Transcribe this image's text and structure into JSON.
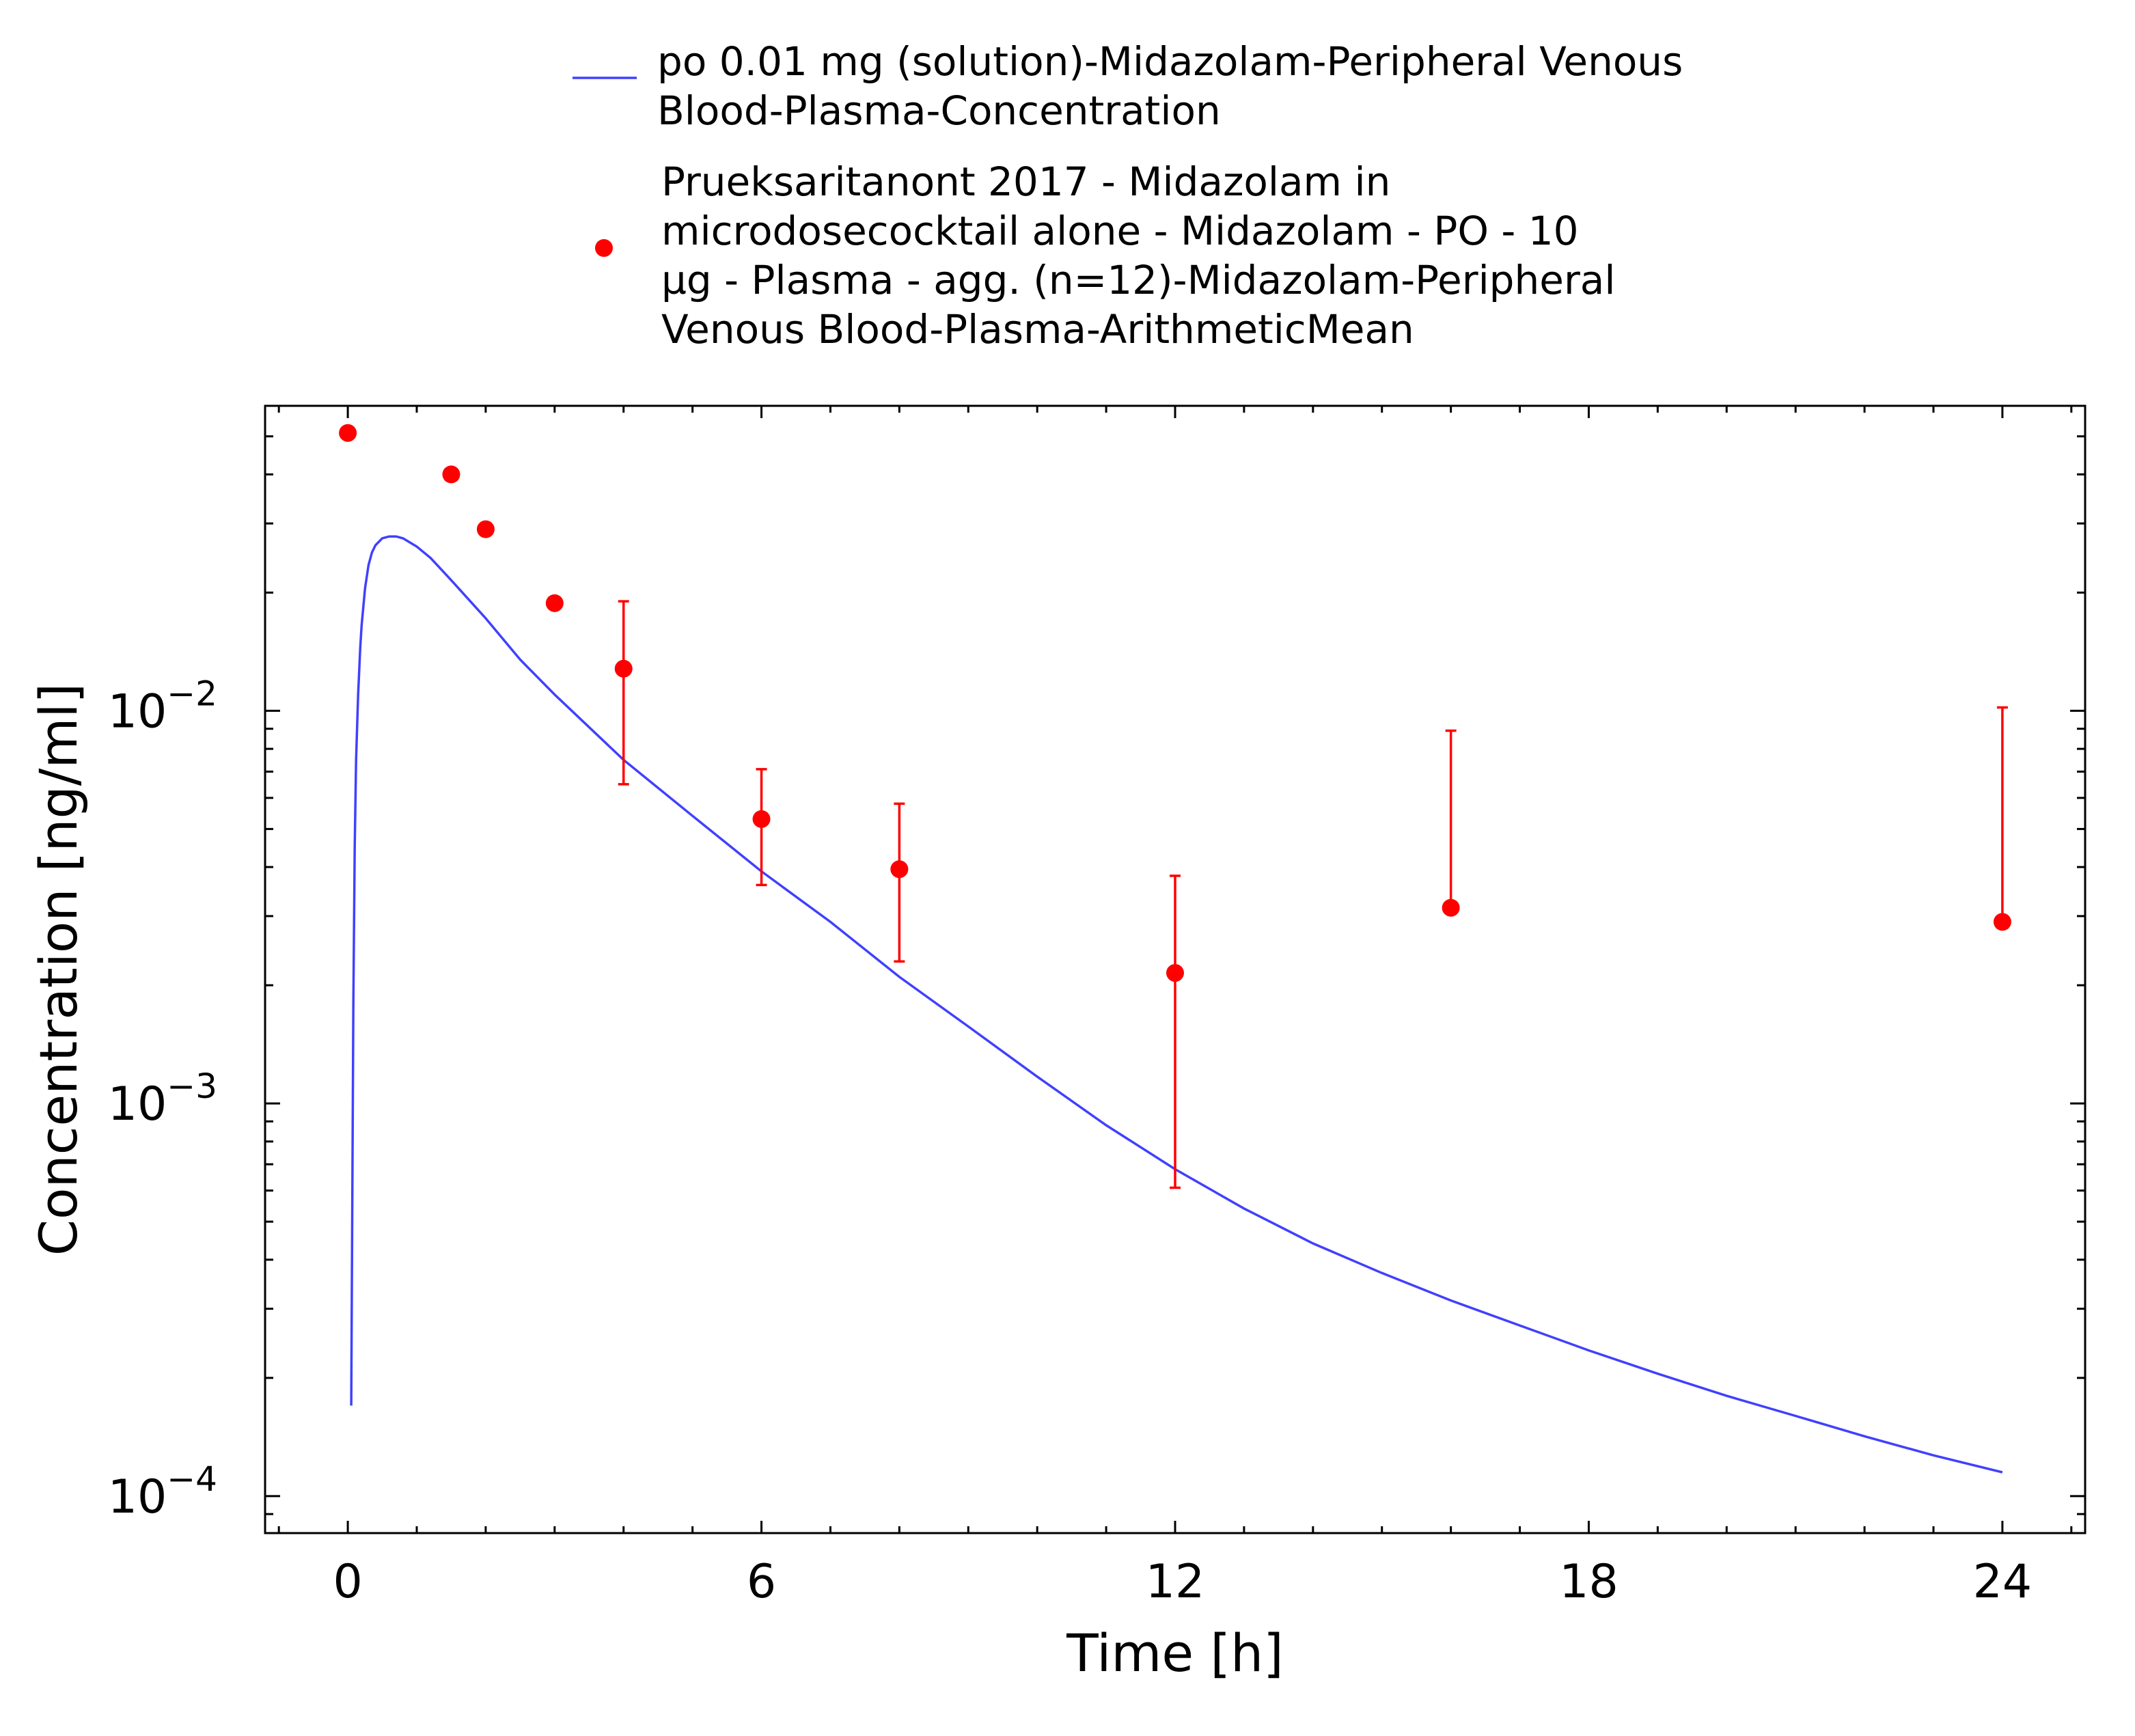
{
  "chart_data": {
    "type": "line",
    "title": "",
    "xlabel": "Time [h]",
    "ylabel": "Concentration [ng/ml]",
    "x_scale": "linear",
    "y_scale": "log",
    "xlim": [
      -1.2,
      25.2
    ],
    "ylim": [
      8.05e-05,
      0.0598
    ],
    "x_ticks": [
      0,
      6,
      12,
      18,
      24
    ],
    "x_tick_labels": [
      "0",
      "6",
      "12",
      "18",
      "24"
    ],
    "y_ticks": [
      0.0001,
      0.001,
      0.01
    ],
    "y_tick_labels": [
      {
        "base": "10",
        "exp": "−4"
      },
      {
        "base": "10",
        "exp": "−3"
      },
      {
        "base": "10",
        "exp": "−2"
      }
    ],
    "grid": false,
    "legend_position": "top",
    "series": [
      {
        "name": "po 0.01 mg (solution)-Midazolam-Peripheral Venous Blood-Plasma-Concentration",
        "legend_lines": [
          "po 0.01 mg (solution)-Midazolam-Peripheral Venous",
          "Blood-Plasma-Concentration"
        ],
        "kind": "line",
        "color": "#4040ff",
        "x": [
          0.05,
          0.08,
          0.1,
          0.12,
          0.15,
          0.18,
          0.2,
          0.25,
          0.3,
          0.35,
          0.4,
          0.5,
          0.6,
          0.7,
          0.8,
          1.0,
          1.2,
          1.5,
          2.0,
          2.5,
          3.0,
          4.0,
          5.0,
          6.0,
          7.0,
          8.0,
          9.0,
          10.0,
          11.0,
          12.0,
          13.0,
          14.0,
          15.0,
          16.0,
          17.0,
          18.0,
          19.0,
          20.0,
          21.0,
          22.0,
          23.0,
          24.0
        ],
        "y": [
          0.00017,
          0.0018,
          0.0045,
          0.0075,
          0.011,
          0.0145,
          0.0165,
          0.0205,
          0.0235,
          0.0253,
          0.0264,
          0.0275,
          0.0278,
          0.0278,
          0.0275,
          0.0262,
          0.0245,
          0.0215,
          0.0172,
          0.0135,
          0.011,
          0.0075,
          0.0054,
          0.0039,
          0.0029,
          0.0021,
          0.00157,
          0.00117,
          0.00088,
          0.00068,
          0.00054,
          0.00044,
          0.00037,
          0.000315,
          0.000272,
          0.000235,
          0.000205,
          0.00018,
          0.00016,
          0.000142,
          0.000127,
          0.000115
        ]
      },
      {
        "name": "Prueksaritanont 2017 - Midazolam in microdosecocktail alone - Midazolam - PO - 10 µg - Plasma - agg. (n=12)-Midazolam-Peripheral Venous Blood-Plasma-ArithmeticMean",
        "legend_lines": [
          "Prueksaritanont 2017 - Midazolam in",
          "microdosecocktail alone - Midazolam - PO - 10",
          "µg - Plasma - agg. (n=12)-Midazolam-Peripheral",
          "Venous Blood-Plasma-ArithmeticMean"
        ],
        "kind": "scatter",
        "color": "#ff0000",
        "x": [
          0,
          1.5,
          2,
          3,
          4,
          6,
          8,
          12,
          16,
          24
        ],
        "y": [
          0.051,
          0.04,
          0.029,
          0.0188,
          0.0128,
          0.0053,
          0.00395,
          0.00215,
          0.00315,
          0.0029
        ],
        "y_lower": [
          null,
          null,
          null,
          null,
          0.0065,
          0.0036,
          0.0023,
          0.00061,
          null,
          null
        ],
        "y_upper": [
          null,
          null,
          null,
          null,
          0.019,
          0.0071,
          0.0058,
          0.0038,
          0.0089,
          0.0102
        ]
      }
    ]
  }
}
